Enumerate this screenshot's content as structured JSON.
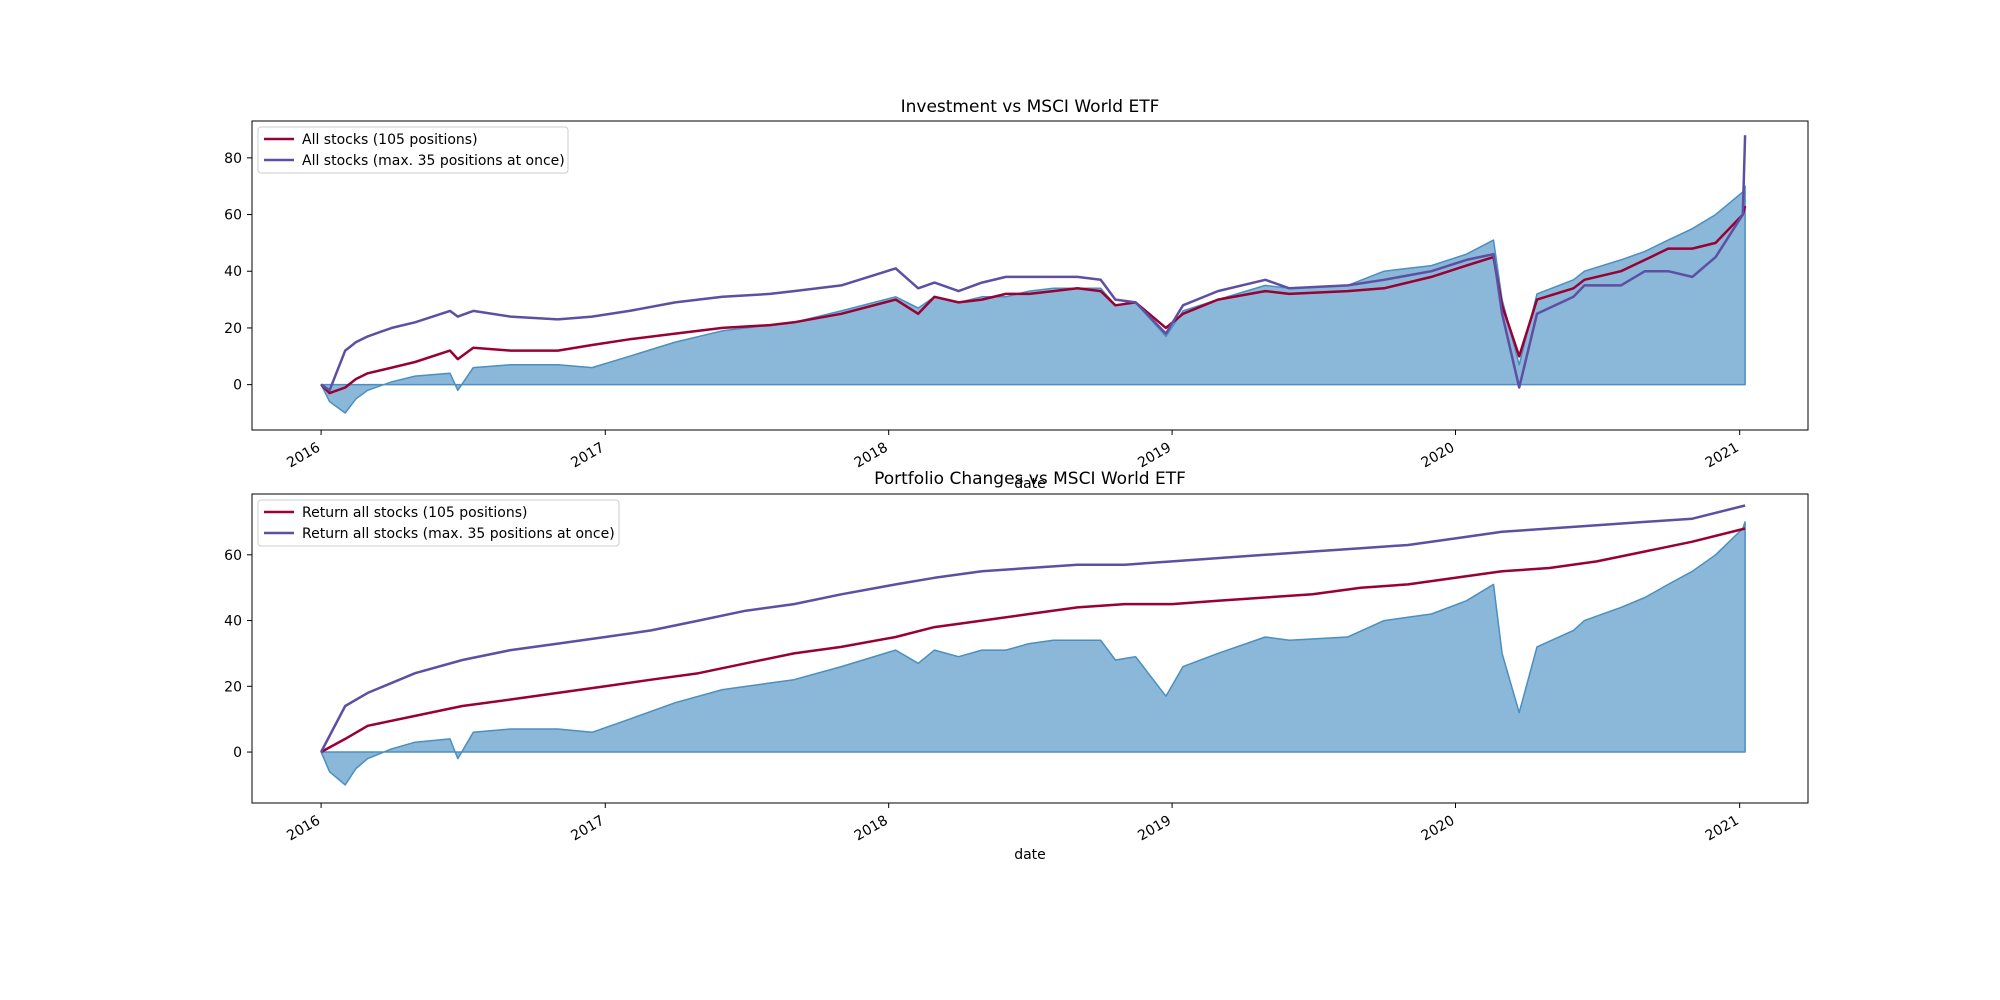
{
  "chart_data": [
    {
      "type": "line",
      "title": "Investment vs MSCI World ETF",
      "xlabel": "date",
      "ylabel": "",
      "xlim": [
        "2015-10-04",
        "2021-03-30"
      ],
      "ylim": [
        -16,
        93
      ],
      "x_ticks": [
        "2016-01-01",
        "2017-01-01",
        "2018-01-01",
        "2019-01-01",
        "2020-01-01",
        "2021-01-01"
      ],
      "x_tick_labels": [
        "2016",
        "2017",
        "2018",
        "2019",
        "2020",
        "2021"
      ],
      "y_ticks": [
        0,
        20,
        40,
        60,
        80
      ],
      "y_tick_labels": [
        "0",
        "20",
        "40",
        "60",
        "80"
      ],
      "legend_position": "top-left",
      "grid": false,
      "area": {
        "color": "#4a8fc2",
        "fill": "#8bb7d8",
        "x": [
          "2016-01-01",
          "2016-01-12",
          "2016-02-01",
          "2016-02-15",
          "2016-03-01",
          "2016-04-01",
          "2016-05-01",
          "2016-06-15",
          "2016-06-25",
          "2016-07-15",
          "2016-09-01",
          "2016-11-01",
          "2016-12-15",
          "2017-02-01",
          "2017-04-01",
          "2017-06-01",
          "2017-08-01",
          "2017-09-01",
          "2017-11-01",
          "2018-01-10",
          "2018-02-08",
          "2018-03-01",
          "2018-04-01",
          "2018-05-01",
          "2018-06-01",
          "2018-07-01",
          "2018-08-01",
          "2018-09-01",
          "2018-10-01",
          "2018-10-20",
          "2018-11-15",
          "2018-12-24",
          "2019-01-15",
          "2019-03-01",
          "2019-05-01",
          "2019-06-01",
          "2019-08-15",
          "2019-10-01",
          "2019-12-01",
          "2020-01-15",
          "2020-02-19",
          "2020-03-01",
          "2020-03-23",
          "2020-04-15",
          "2020-06-01",
          "2020-06-15",
          "2020-08-01",
          "2020-09-01",
          "2020-10-01",
          "2020-11-01",
          "2020-12-01",
          "2021-01-05",
          "2021-01-08"
        ],
        "values": [
          0,
          -6,
          -10,
          -5,
          -2,
          1,
          3,
          4,
          -2,
          6,
          7,
          7,
          6,
          10,
          15,
          19,
          21,
          22,
          26,
          31,
          27,
          31,
          29,
          31,
          31,
          33,
          34,
          34,
          34,
          28,
          29,
          17,
          26,
          30,
          35,
          34,
          35,
          40,
          42,
          46,
          51,
          30,
          7,
          32,
          37,
          40,
          44,
          47,
          51,
          55,
          60,
          68,
          70
        ]
      },
      "series": [
        {
          "name": "All stocks (105 positions)",
          "color": "#990033",
          "x": [
            "2016-01-01",
            "2016-01-12",
            "2016-02-01",
            "2016-02-15",
            "2016-03-01",
            "2016-04-01",
            "2016-05-01",
            "2016-06-15",
            "2016-06-25",
            "2016-07-15",
            "2016-09-01",
            "2016-11-01",
            "2016-12-15",
            "2017-02-01",
            "2017-04-01",
            "2017-06-01",
            "2017-08-01",
            "2017-09-01",
            "2017-11-01",
            "2018-01-10",
            "2018-02-08",
            "2018-03-01",
            "2018-04-01",
            "2018-05-01",
            "2018-06-01",
            "2018-07-01",
            "2018-08-01",
            "2018-09-01",
            "2018-10-01",
            "2018-10-20",
            "2018-11-15",
            "2018-12-24",
            "2019-01-15",
            "2019-03-01",
            "2019-05-01",
            "2019-06-01",
            "2019-08-15",
            "2019-10-01",
            "2019-12-01",
            "2020-01-15",
            "2020-02-19",
            "2020-03-01",
            "2020-03-23",
            "2020-04-15",
            "2020-06-01",
            "2020-06-15",
            "2020-08-01",
            "2020-09-01",
            "2020-10-01",
            "2020-11-01",
            "2020-12-01",
            "2021-01-05",
            "2021-01-08"
          ],
          "values": [
            0,
            -3,
            -1,
            2,
            4,
            6,
            8,
            12,
            9,
            13,
            12,
            12,
            14,
            16,
            18,
            20,
            21,
            22,
            25,
            30,
            25,
            31,
            29,
            30,
            32,
            32,
            33,
            34,
            33,
            28,
            29,
            20,
            25,
            30,
            33,
            32,
            33,
            34,
            38,
            42,
            45,
            28,
            10,
            30,
            34,
            37,
            40,
            44,
            48,
            48,
            50,
            60,
            63
          ]
        },
        {
          "name": "All stocks (max. 35 positions at once)",
          "color": "#5e4fa2",
          "x": [
            "2016-01-01",
            "2016-01-12",
            "2016-02-01",
            "2016-02-15",
            "2016-03-01",
            "2016-04-01",
            "2016-05-01",
            "2016-06-15",
            "2016-06-25",
            "2016-07-15",
            "2016-09-01",
            "2016-11-01",
            "2016-12-15",
            "2017-02-01",
            "2017-04-01",
            "2017-06-01",
            "2017-08-01",
            "2017-09-01",
            "2017-11-01",
            "2018-01-10",
            "2018-02-08",
            "2018-03-01",
            "2018-04-01",
            "2018-05-01",
            "2018-06-01",
            "2018-07-01",
            "2018-08-01",
            "2018-09-01",
            "2018-10-01",
            "2018-10-20",
            "2018-11-15",
            "2018-12-24",
            "2019-01-15",
            "2019-03-01",
            "2019-05-01",
            "2019-06-01",
            "2019-08-15",
            "2019-10-01",
            "2019-12-01",
            "2020-01-15",
            "2020-02-19",
            "2020-03-01",
            "2020-03-23",
            "2020-04-15",
            "2020-06-01",
            "2020-06-15",
            "2020-08-01",
            "2020-09-01",
            "2020-10-01",
            "2020-11-01",
            "2020-12-01",
            "2021-01-05",
            "2021-01-08"
          ],
          "values": [
            0,
            -2,
            12,
            15,
            17,
            20,
            22,
            26,
            24,
            26,
            24,
            23,
            24,
            26,
            29,
            31,
            32,
            33,
            35,
            41,
            34,
            36,
            33,
            36,
            38,
            38,
            38,
            38,
            37,
            30,
            29,
            18,
            28,
            33,
            37,
            34,
            35,
            37,
            40,
            44,
            46,
            25,
            -1,
            25,
            31,
            35,
            35,
            40,
            40,
            38,
            45,
            60,
            88
          ]
        }
      ]
    },
    {
      "type": "line",
      "title": "Portfolio Changes vs MSCI World ETF",
      "xlabel": "date",
      "ylabel": "",
      "xlim": [
        "2015-10-04",
        "2021-03-30"
      ],
      "ylim": [
        -15.5,
        78.5
      ],
      "x_ticks": [
        "2016-01-01",
        "2017-01-01",
        "2018-01-01",
        "2019-01-01",
        "2020-01-01",
        "2021-01-01"
      ],
      "x_tick_labels": [
        "2016",
        "2017",
        "2018",
        "2019",
        "2020",
        "2021"
      ],
      "y_ticks": [
        0,
        20,
        40,
        60
      ],
      "y_tick_labels": [
        "0",
        "20",
        "40",
        "60"
      ],
      "legend_position": "top-left",
      "grid": false,
      "area": {
        "color": "#4a8fc2",
        "fill": "#8bb7d8",
        "x": [
          "2016-01-01",
          "2016-01-12",
          "2016-02-01",
          "2016-02-15",
          "2016-03-01",
          "2016-04-01",
          "2016-05-01",
          "2016-06-15",
          "2016-06-25",
          "2016-07-15",
          "2016-09-01",
          "2016-11-01",
          "2016-12-15",
          "2017-02-01",
          "2017-04-01",
          "2017-06-01",
          "2017-08-01",
          "2017-09-01",
          "2017-11-01",
          "2018-01-10",
          "2018-02-08",
          "2018-03-01",
          "2018-04-01",
          "2018-05-01",
          "2018-06-01",
          "2018-07-01",
          "2018-08-01",
          "2018-09-01",
          "2018-10-01",
          "2018-10-20",
          "2018-11-15",
          "2018-12-24",
          "2019-01-15",
          "2019-03-01",
          "2019-05-01",
          "2019-06-01",
          "2019-08-15",
          "2019-10-01",
          "2019-12-01",
          "2020-01-15",
          "2020-02-19",
          "2020-03-01",
          "2020-03-23",
          "2020-04-15",
          "2020-06-01",
          "2020-06-15",
          "2020-08-01",
          "2020-09-01",
          "2020-10-01",
          "2020-11-01",
          "2020-12-01",
          "2021-01-05",
          "2021-01-08"
        ],
        "values": [
          0,
          -6,
          -10,
          -5,
          -2,
          1,
          3,
          4,
          -2,
          6,
          7,
          7,
          6,
          10,
          15,
          19,
          21,
          22,
          26,
          31,
          27,
          31,
          29,
          31,
          31,
          33,
          34,
          34,
          34,
          28,
          29,
          17,
          26,
          30,
          35,
          34,
          35,
          40,
          42,
          46,
          51,
          30,
          12,
          32,
          37,
          40,
          44,
          47,
          51,
          55,
          60,
          68,
          70
        ]
      },
      "series": [
        {
          "name": "Return all stocks (105 positions)",
          "color": "#990033",
          "x": [
            "2016-01-01",
            "2016-02-01",
            "2016-03-01",
            "2016-05-01",
            "2016-07-01",
            "2016-09-01",
            "2016-11-01",
            "2017-01-01",
            "2017-03-01",
            "2017-05-01",
            "2017-07-01",
            "2017-09-01",
            "2017-11-01",
            "2018-01-10",
            "2018-03-01",
            "2018-05-01",
            "2018-07-01",
            "2018-09-01",
            "2018-11-01",
            "2019-01-01",
            "2019-03-01",
            "2019-05-01",
            "2019-07-01",
            "2019-09-01",
            "2019-11-01",
            "2020-01-01",
            "2020-03-01",
            "2020-05-01",
            "2020-07-01",
            "2020-09-01",
            "2020-11-01",
            "2021-01-08"
          ],
          "values": [
            0,
            4,
            8,
            11,
            14,
            16,
            18,
            20,
            22,
            24,
            27,
            30,
            32,
            35,
            38,
            40,
            42,
            44,
            45,
            45,
            46,
            47,
            48,
            50,
            51,
            53,
            55,
            56,
            58,
            61,
            64,
            68
          ]
        },
        {
          "name": "Return all stocks (max. 35 positions at once)",
          "color": "#5e4fa2",
          "x": [
            "2016-01-01",
            "2016-02-01",
            "2016-03-01",
            "2016-05-01",
            "2016-07-01",
            "2016-09-01",
            "2016-11-01",
            "2017-01-01",
            "2017-03-01",
            "2017-05-01",
            "2017-07-01",
            "2017-09-01",
            "2017-11-01",
            "2018-01-10",
            "2018-03-01",
            "2018-05-01",
            "2018-07-01",
            "2018-09-01",
            "2018-11-01",
            "2019-01-01",
            "2019-03-01",
            "2019-05-01",
            "2019-07-01",
            "2019-09-01",
            "2019-11-01",
            "2020-01-01",
            "2020-03-01",
            "2020-05-01",
            "2020-07-01",
            "2020-09-01",
            "2020-11-01",
            "2021-01-08"
          ],
          "values": [
            0,
            14,
            18,
            24,
            28,
            31,
            33,
            35,
            37,
            40,
            43,
            45,
            48,
            51,
            53,
            55,
            56,
            57,
            57,
            58,
            59,
            60,
            61,
            62,
            63,
            65,
            67,
            68,
            69,
            70,
            71,
            75
          ]
        }
      ]
    }
  ]
}
